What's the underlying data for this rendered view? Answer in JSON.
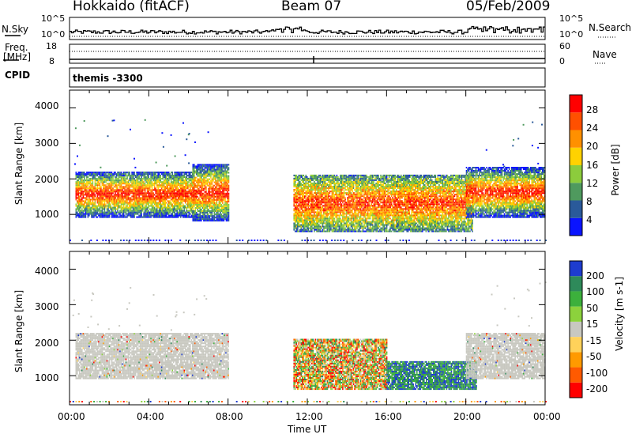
{
  "header": {
    "radar": "Hokkaido (fitACF)",
    "beam": "Beam 07",
    "date": "05/Feb/2009"
  },
  "top_panels": {
    "nsky_label": "N.Sky",
    "nsky_ticks": [
      "10^5",
      "10^0"
    ],
    "nsearch_label": "N.Search",
    "nsearch_ticks": [
      "10^5",
      "10^0"
    ],
    "freq_label": "Freq.",
    "freq_unit": "[MHz]",
    "freq_ticks": [
      "18",
      "8"
    ],
    "nave_label": "Nave",
    "nave_ticks": [
      "60",
      "0"
    ],
    "cpid_label": "CPID",
    "cpid_value": "themis -3300"
  },
  "colors": {
    "power_scale": [
      "#0a14ff",
      "#2a5a9a",
      "#4f9a5e",
      "#8ccc3c",
      "#ffd200",
      "#ff9000",
      "#ff5000",
      "#ff0000"
    ],
    "velocity_scale": [
      "#ff0000",
      "#ff5a00",
      "#ff9a00",
      "#ffd25a",
      "#c8c8c0",
      "#8cd23c",
      "#3cb03c",
      "#2e8a5a",
      "#1e3ccf"
    ],
    "ground_scatter": "#c8c8c0"
  },
  "chart_data": [
    {
      "type": "heatmap",
      "title": "Power",
      "xlabel": "Time UT",
      "ylabel": "Slant Range [km]",
      "x_ticks": [
        "00:00",
        "04:00",
        "08:00",
        "12:00",
        "16:00",
        "20:00",
        "00:00"
      ],
      "xlim": [
        0,
        24
      ],
      "ylim": [
        180,
        4500
      ],
      "y_ticks": [
        "1000",
        "2000",
        "3000",
        "4000"
      ],
      "colorbar": {
        "label": "Power [dB]",
        "ticks": [
          "4",
          "8",
          "12",
          "16",
          "20",
          "24",
          "28"
        ],
        "range": [
          0,
          30
        ]
      },
      "regions": [
        {
          "t": [
            0.3,
            6.2
          ],
          "range_km": [
            900,
            2200
          ],
          "power_core": 26
        },
        {
          "t": [
            6.2,
            8.0
          ],
          "range_km": [
            800,
            2400
          ],
          "power_core": 24
        },
        {
          "t": [
            11.3,
            20.3
          ],
          "range_km": [
            500,
            2100
          ],
          "power_core": 20
        },
        {
          "t": [
            20.0,
            24.0
          ],
          "range_km": [
            900,
            2300
          ],
          "power_core": 24
        }
      ]
    },
    {
      "type": "heatmap",
      "title": "Velocity",
      "xlabel": "Time UT",
      "ylabel": "Slant Range [km]",
      "x_ticks": [
        "00:00",
        "04:00",
        "08:00",
        "12:00",
        "16:00",
        "20:00",
        "00:00"
      ],
      "xlim": [
        0,
        24
      ],
      "ylim": [
        180,
        4500
      ],
      "y_ticks": [
        "1000",
        "2000",
        "3000",
        "4000"
      ],
      "colorbar": {
        "label": "Velocity [m s-1]",
        "ticks": [
          "200",
          "100",
          "50",
          "15",
          "-15",
          "-50",
          "-100",
          "-200"
        ],
        "range": [
          -250,
          250
        ]
      },
      "regions": [
        {
          "t": [
            0.3,
            8.0
          ],
          "range_km": [
            900,
            2200
          ],
          "velocity": "ground scatter"
        },
        {
          "t": [
            11.3,
            16.0
          ],
          "range_km": [
            600,
            2000
          ],
          "velocity": "mixed -100 to 100"
        },
        {
          "t": [
            16.0,
            20.5
          ],
          "range_km": [
            600,
            1400
          ],
          "velocity": "50 to 200"
        },
        {
          "t": [
            20.0,
            24.0
          ],
          "range_km": [
            900,
            2200
          ],
          "velocity": "ground scatter"
        }
      ]
    }
  ]
}
